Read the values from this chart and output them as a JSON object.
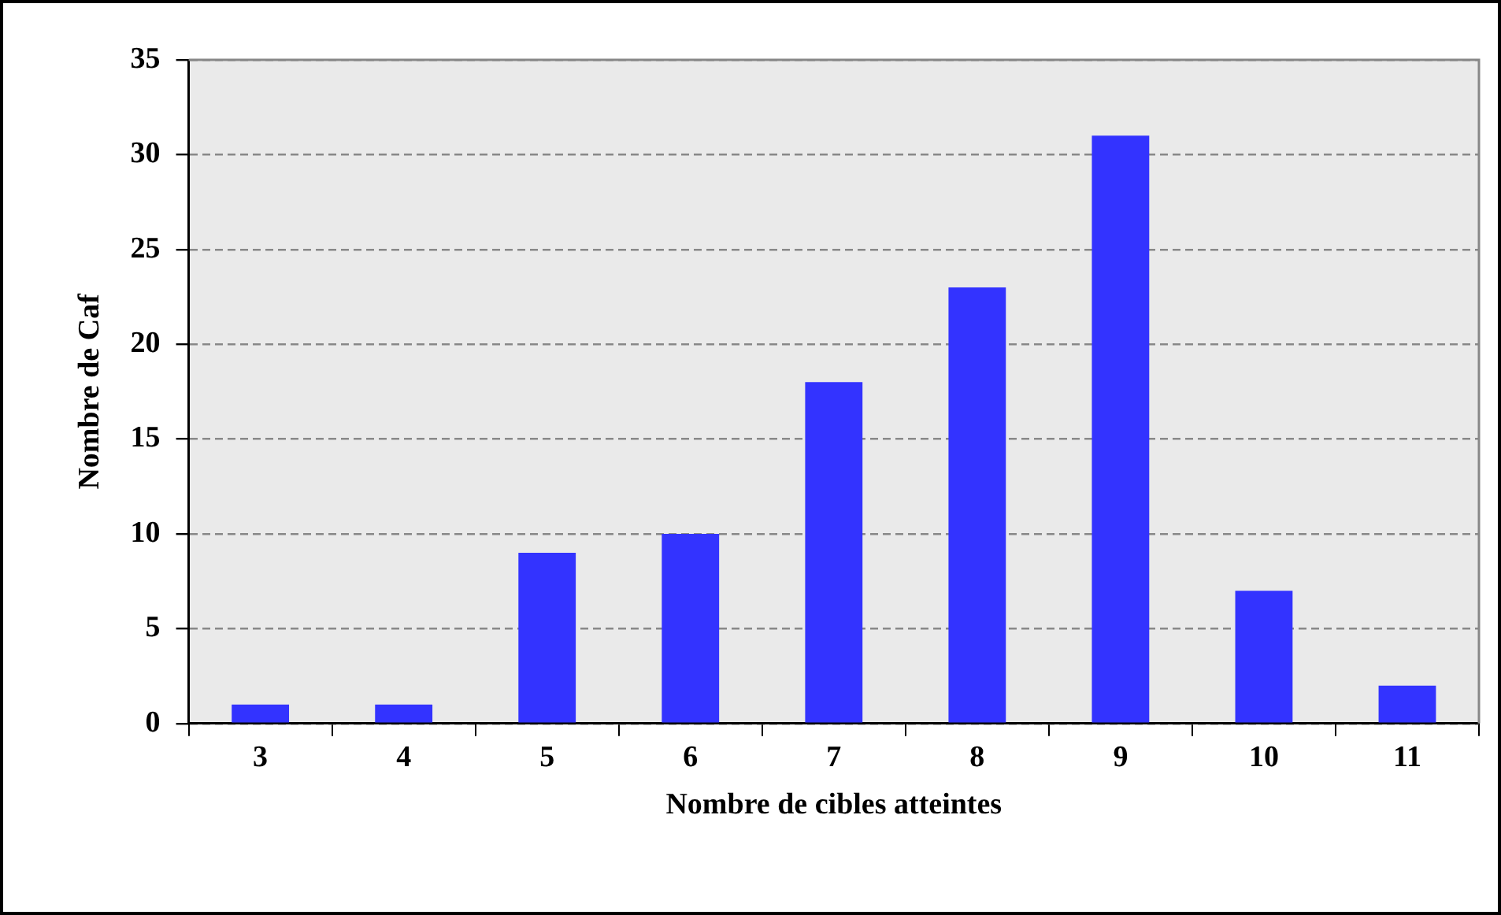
{
  "chart_data": {
    "type": "bar",
    "xlabel": "Nombre de cibles atteintes",
    "ylabel": "Nombre de Caf",
    "categories": [
      "3",
      "4",
      "5",
      "6",
      "7",
      "8",
      "9",
      "10",
      "11"
    ],
    "values": [
      1,
      1,
      9,
      10,
      18,
      23,
      31,
      7,
      2
    ],
    "color": "#3333ff",
    "ylim": [
      0,
      35
    ],
    "yticks": [
      0,
      5,
      10,
      15,
      20,
      25,
      30,
      35
    ],
    "grid": "y",
    "legend": false
  }
}
